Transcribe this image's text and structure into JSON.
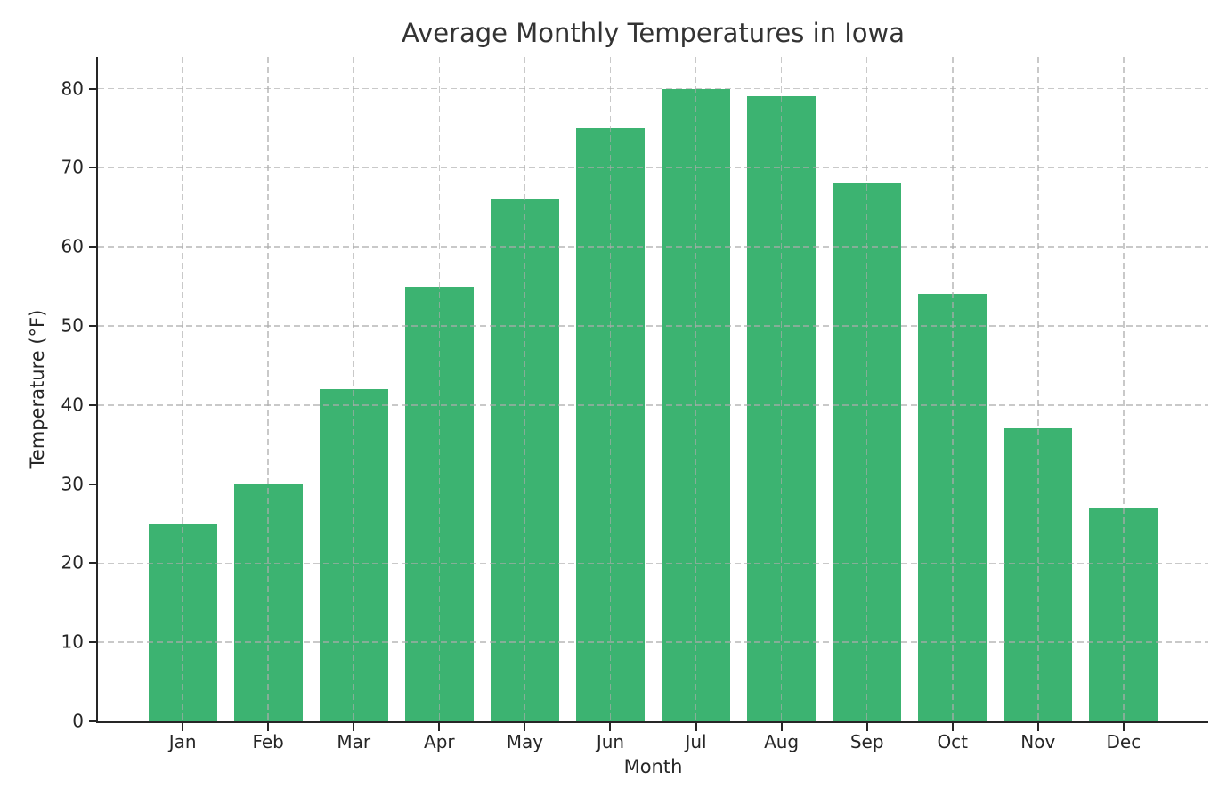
{
  "figure": {
    "background": "#ffffff"
  },
  "chart_data": {
    "type": "bar",
    "title": "Average Monthly Temperatures in Iowa",
    "xlabel": "Month",
    "ylabel": "Temperature (°F)",
    "categories": [
      "Jan",
      "Feb",
      "Mar",
      "Apr",
      "May",
      "Jun",
      "Jul",
      "Aug",
      "Sep",
      "Oct",
      "Nov",
      "Dec"
    ],
    "values": [
      25,
      30,
      42,
      55,
      66,
      75,
      80,
      79,
      68,
      54,
      37,
      27
    ],
    "yticks": [
      0,
      10,
      20,
      30,
      40,
      50,
      60,
      70,
      80
    ],
    "ylim": [
      0,
      84
    ],
    "grid": true,
    "grid_style": "dashed",
    "grid_above_bars": true,
    "legend_position": "none",
    "colors": {
      "bar": "#3cb371",
      "grid": "#c7c7c7",
      "axis": "#262626",
      "text": "#262626",
      "title": "#333333"
    }
  }
}
